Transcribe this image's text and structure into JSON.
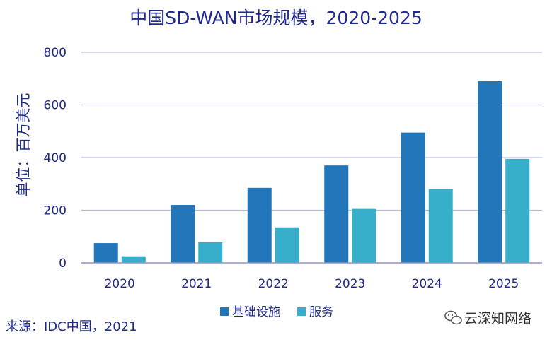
{
  "chart_data": {
    "type": "bar",
    "title": "中国SD-WAN市场规模，2020-2025",
    "xlabel": "",
    "ylabel": "单位：百万美元",
    "ylim": [
      0,
      800
    ],
    "yticks": [
      0,
      200,
      400,
      600,
      800
    ],
    "grid": true,
    "categories": [
      "2020",
      "2021",
      "2022",
      "2023",
      "2024",
      "2025"
    ],
    "series": [
      {
        "name": "基础设施",
        "color": "#2277bb",
        "values": [
          75,
          220,
          285,
          370,
          495,
          690
        ]
      },
      {
        "name": "服务",
        "color": "#37afca",
        "values": [
          25,
          78,
          135,
          205,
          280,
          395
        ]
      }
    ],
    "legend_position": "bottom",
    "source": "来源：IDC中国，2021"
  },
  "watermark": {
    "text": "云深知网络",
    "icon": "wechat-icon"
  }
}
